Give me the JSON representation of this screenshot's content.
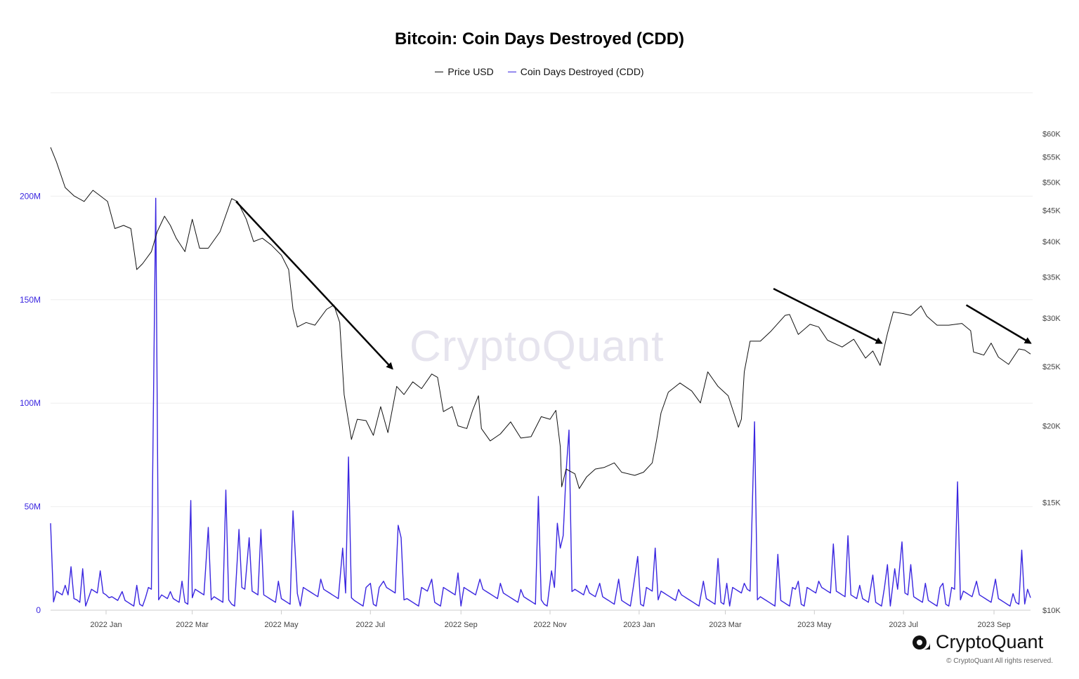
{
  "chart_data": {
    "type": "line",
    "title": "Bitcoin: Coin Days Destroyed (CDD)",
    "legend": [
      "Price USD",
      "Coin Days Destroyed (CDD)"
    ],
    "legend_position": "top-center",
    "x_tick_labels": [
      "2022 Jan",
      "2022 Mar",
      "2022 May",
      "2022 Jul",
      "2022 Sep",
      "2022 Nov",
      "2023 Jan",
      "2023 Mar",
      "2023 May",
      "2023 Jul",
      "2023 Sep"
    ],
    "x_ticks": [
      "2022-01-01",
      "2022-03-01",
      "2022-05-01",
      "2022-07-01",
      "2022-09-01",
      "2022-11-01",
      "2023-01-01",
      "2023-03-01",
      "2023-05-01",
      "2023-07-01",
      "2023-09-01"
    ],
    "xlim": [
      "2021-11-24",
      "2023-09-26"
    ],
    "y_left": {
      "tick_labels": [
        "0",
        "50M",
        "100M",
        "150M",
        "200M"
      ],
      "ticks": [
        0,
        50000000,
        100000000,
        150000000,
        200000000
      ],
      "ylim": [
        0,
        250000000
      ]
    },
    "y_right": {
      "scale": "log",
      "tick_labels": [
        "$10K",
        "$15K",
        "$20K",
        "$25K",
        "$30K",
        "$35K",
        "$40K",
        "$45K",
        "$50K",
        "$55K",
        "$60K"
      ],
      "ticks": [
        10000,
        15000,
        20000,
        25000,
        30000,
        35000,
        40000,
        45000,
        50000,
        55000,
        60000
      ],
      "ylim": [
        10000,
        70000
      ]
    },
    "grid": "horizontal",
    "series": [
      {
        "name": "Price USD",
        "axis": "right",
        "color": "#111111",
        "points": [
          [
            "2021-11-24",
            57000
          ],
          [
            "2021-11-28",
            54000
          ],
          [
            "2021-12-04",
            49000
          ],
          [
            "2021-12-10",
            47500
          ],
          [
            "2021-12-17",
            46500
          ],
          [
            "2021-12-23",
            48500
          ],
          [
            "2021-12-28",
            47500
          ],
          [
            "2022-01-02",
            46500
          ],
          [
            "2022-01-07",
            42000
          ],
          [
            "2022-01-13",
            42500
          ],
          [
            "2022-01-18",
            42000
          ],
          [
            "2022-01-22",
            36000
          ],
          [
            "2022-01-26",
            36800
          ],
          [
            "2022-02-01",
            38500
          ],
          [
            "2022-02-05",
            41500
          ],
          [
            "2022-02-10",
            44000
          ],
          [
            "2022-02-14",
            42500
          ],
          [
            "2022-02-18",
            40500
          ],
          [
            "2022-02-24",
            38500
          ],
          [
            "2022-03-01",
            43500
          ],
          [
            "2022-03-06",
            39000
          ],
          [
            "2022-03-12",
            39000
          ],
          [
            "2022-03-20",
            41500
          ],
          [
            "2022-03-28",
            47000
          ],
          [
            "2022-04-01",
            46500
          ],
          [
            "2022-04-07",
            43500
          ],
          [
            "2022-04-12",
            40000
          ],
          [
            "2022-04-18",
            40500
          ],
          [
            "2022-04-24",
            39500
          ],
          [
            "2022-05-01",
            38000
          ],
          [
            "2022-05-06",
            36000
          ],
          [
            "2022-05-09",
            31000
          ],
          [
            "2022-05-12",
            29000
          ],
          [
            "2022-05-18",
            29500
          ],
          [
            "2022-05-24",
            29200
          ],
          [
            "2022-06-01",
            31000
          ],
          [
            "2022-06-06",
            31500
          ],
          [
            "2022-06-10",
            29500
          ],
          [
            "2022-06-13",
            22500
          ],
          [
            "2022-06-18",
            19000
          ],
          [
            "2022-06-22",
            20500
          ],
          [
            "2022-06-28",
            20400
          ],
          [
            "2022-07-03",
            19300
          ],
          [
            "2022-07-08",
            21500
          ],
          [
            "2022-07-13",
            19500
          ],
          [
            "2022-07-19",
            23200
          ],
          [
            "2022-07-24",
            22500
          ],
          [
            "2022-07-30",
            23600
          ],
          [
            "2022-08-05",
            23000
          ],
          [
            "2022-08-12",
            24300
          ],
          [
            "2022-08-16",
            24000
          ],
          [
            "2022-08-20",
            21100
          ],
          [
            "2022-08-26",
            21500
          ],
          [
            "2022-08-30",
            20000
          ],
          [
            "2022-09-05",
            19800
          ],
          [
            "2022-09-09",
            21200
          ],
          [
            "2022-09-13",
            22400
          ],
          [
            "2022-09-15",
            19800
          ],
          [
            "2022-09-21",
            18900
          ],
          [
            "2022-09-28",
            19400
          ],
          [
            "2022-10-05",
            20300
          ],
          [
            "2022-10-12",
            19100
          ],
          [
            "2022-10-19",
            19200
          ],
          [
            "2022-10-26",
            20700
          ],
          [
            "2022-11-01",
            20500
          ],
          [
            "2022-11-05",
            21200
          ],
          [
            "2022-11-08",
            18500
          ],
          [
            "2022-11-09",
            15900
          ],
          [
            "2022-11-12",
            17000
          ],
          [
            "2022-11-18",
            16700
          ],
          [
            "2022-11-21",
            15800
          ],
          [
            "2022-11-26",
            16500
          ],
          [
            "2022-12-02",
            17000
          ],
          [
            "2022-12-08",
            17100
          ],
          [
            "2022-12-15",
            17400
          ],
          [
            "2022-12-20",
            16800
          ],
          [
            "2022-12-29",
            16600
          ],
          [
            "2023-01-04",
            16800
          ],
          [
            "2023-01-10",
            17400
          ],
          [
            "2023-01-13",
            19000
          ],
          [
            "2023-01-16",
            21000
          ],
          [
            "2023-01-21",
            22700
          ],
          [
            "2023-01-29",
            23500
          ],
          [
            "2023-02-06",
            22800
          ],
          [
            "2023-02-12",
            21800
          ],
          [
            "2023-02-17",
            24500
          ],
          [
            "2023-02-24",
            23200
          ],
          [
            "2023-03-03",
            22400
          ],
          [
            "2023-03-10",
            19900
          ],
          [
            "2023-03-12",
            20500
          ],
          [
            "2023-03-14",
            24500
          ],
          [
            "2023-03-18",
            27500
          ],
          [
            "2023-03-25",
            27500
          ],
          [
            "2023-04-01",
            28500
          ],
          [
            "2023-04-11",
            30300
          ],
          [
            "2023-04-14",
            30400
          ],
          [
            "2023-04-20",
            28200
          ],
          [
            "2023-04-28",
            29300
          ],
          [
            "2023-05-04",
            29000
          ],
          [
            "2023-05-10",
            27600
          ],
          [
            "2023-05-20",
            26900
          ],
          [
            "2023-05-28",
            27700
          ],
          [
            "2023-06-05",
            25800
          ],
          [
            "2023-06-10",
            26500
          ],
          [
            "2023-06-15",
            25100
          ],
          [
            "2023-06-20",
            28300
          ],
          [
            "2023-06-24",
            30700
          ],
          [
            "2023-07-01",
            30500
          ],
          [
            "2023-07-06",
            30300
          ],
          [
            "2023-07-13",
            31400
          ],
          [
            "2023-07-17",
            30200
          ],
          [
            "2023-07-24",
            29200
          ],
          [
            "2023-08-01",
            29200
          ],
          [
            "2023-08-10",
            29400
          ],
          [
            "2023-08-16",
            28600
          ],
          [
            "2023-08-18",
            26400
          ],
          [
            "2023-08-25",
            26100
          ],
          [
            "2023-08-30",
            27300
          ],
          [
            "2023-09-04",
            25900
          ],
          [
            "2023-09-11",
            25200
          ],
          [
            "2023-09-18",
            26700
          ],
          [
            "2023-09-22",
            26600
          ],
          [
            "2023-09-26",
            26200
          ]
        ]
      },
      {
        "name": "Coin Days Destroyed (CDD)",
        "axis": "left",
        "color": "#3a26e0",
        "points": [
          [
            "2021-11-24",
            42000000
          ],
          [
            "2021-11-26",
            4000000
          ],
          [
            "2021-12-04",
            12000000
          ],
          [
            "2021-12-08",
            21000000
          ],
          [
            "2021-12-12",
            5000000
          ],
          [
            "2021-12-16",
            20000000
          ],
          [
            "2021-12-20",
            6000000
          ],
          [
            "2021-12-28",
            19000000
          ],
          [
            "2022-01-03",
            6000000
          ],
          [
            "2022-01-12",
            9000000
          ],
          [
            "2022-01-22",
            12000000
          ],
          [
            "2022-01-28",
            6000000
          ],
          [
            "2022-02-04",
            199000000
          ],
          [
            "2022-02-06",
            5000000
          ],
          [
            "2022-02-14",
            9000000
          ],
          [
            "2022-02-22",
            14000000
          ],
          [
            "2022-02-28",
            53000000
          ],
          [
            "2022-03-01",
            6000000
          ],
          [
            "2022-03-12",
            40000000
          ],
          [
            "2022-03-14",
            5000000
          ],
          [
            "2022-03-24",
            58000000
          ],
          [
            "2022-03-26",
            5000000
          ],
          [
            "2022-04-02",
            39000000
          ],
          [
            "2022-04-09",
            35000000
          ],
          [
            "2022-04-17",
            39000000
          ],
          [
            "2022-04-29",
            14000000
          ],
          [
            "2022-05-09",
            48000000
          ],
          [
            "2022-05-12",
            8000000
          ],
          [
            "2022-05-28",
            15000000
          ],
          [
            "2022-06-12",
            30000000
          ],
          [
            "2022-06-16",
            74000000
          ],
          [
            "2022-06-18",
            6000000
          ],
          [
            "2022-07-01",
            13000000
          ],
          [
            "2022-07-10",
            14000000
          ],
          [
            "2022-07-20",
            41000000
          ],
          [
            "2022-07-22",
            35000000
          ],
          [
            "2022-07-24",
            5000000
          ],
          [
            "2022-08-12",
            15000000
          ],
          [
            "2022-08-30",
            18000000
          ],
          [
            "2022-09-14",
            15000000
          ],
          [
            "2022-09-28",
            13000000
          ],
          [
            "2022-10-12",
            10000000
          ],
          [
            "2022-10-24",
            55000000
          ],
          [
            "2022-10-26",
            5000000
          ],
          [
            "2022-11-02",
            19000000
          ],
          [
            "2022-11-06",
            42000000
          ],
          [
            "2022-11-08",
            30000000
          ],
          [
            "2022-11-10",
            36000000
          ],
          [
            "2022-11-12",
            67000000
          ],
          [
            "2022-11-14",
            87000000
          ],
          [
            "2022-11-16",
            9000000
          ],
          [
            "2022-11-26",
            12000000
          ],
          [
            "2022-12-05",
            13000000
          ],
          [
            "2022-12-18",
            15000000
          ],
          [
            "2022-12-31",
            26000000
          ],
          [
            "2023-01-12",
            30000000
          ],
          [
            "2023-01-14",
            5000000
          ],
          [
            "2023-01-28",
            10000000
          ],
          [
            "2023-02-14",
            14000000
          ],
          [
            "2023-02-24",
            25000000
          ],
          [
            "2023-03-02",
            13000000
          ],
          [
            "2023-03-14",
            13000000
          ],
          [
            "2023-03-21",
            91000000
          ],
          [
            "2023-03-23",
            5000000
          ],
          [
            "2023-04-06",
            27000000
          ],
          [
            "2023-04-20",
            14000000
          ],
          [
            "2023-05-04",
            14000000
          ],
          [
            "2023-05-14",
            32000000
          ],
          [
            "2023-05-24",
            36000000
          ],
          [
            "2023-06-01",
            12000000
          ],
          [
            "2023-06-10",
            17000000
          ],
          [
            "2023-06-20",
            22000000
          ],
          [
            "2023-06-25",
            20000000
          ],
          [
            "2023-06-30",
            33000000
          ],
          [
            "2023-07-06",
            22000000
          ],
          [
            "2023-07-16",
            13000000
          ],
          [
            "2023-07-28",
            13000000
          ],
          [
            "2023-08-07",
            62000000
          ],
          [
            "2023-08-09",
            5000000
          ],
          [
            "2023-08-20",
            14000000
          ],
          [
            "2023-09-02",
            15000000
          ],
          [
            "2023-09-14",
            8000000
          ],
          [
            "2023-09-20",
            29000000
          ],
          [
            "2023-09-22",
            3000000
          ],
          [
            "2023-09-26",
            6000000
          ]
        ]
      }
    ],
    "annotations": [
      {
        "type": "arrow",
        "from": [
          "2022-03-31",
          46500
        ],
        "to": [
          "2022-07-16",
          24800
        ]
      },
      {
        "type": "arrow",
        "from": [
          "2023-04-03",
          33500
        ],
        "to": [
          "2023-06-16",
          27300
        ]
      },
      {
        "type": "arrow",
        "from": [
          "2023-08-13",
          31500
        ],
        "to": [
          "2023-09-26",
          27300
        ]
      }
    ]
  },
  "watermark": "CryptoQuant",
  "brand": {
    "name": "CryptoQuant",
    "copyright": "© CryptoQuant All rights reserved."
  }
}
